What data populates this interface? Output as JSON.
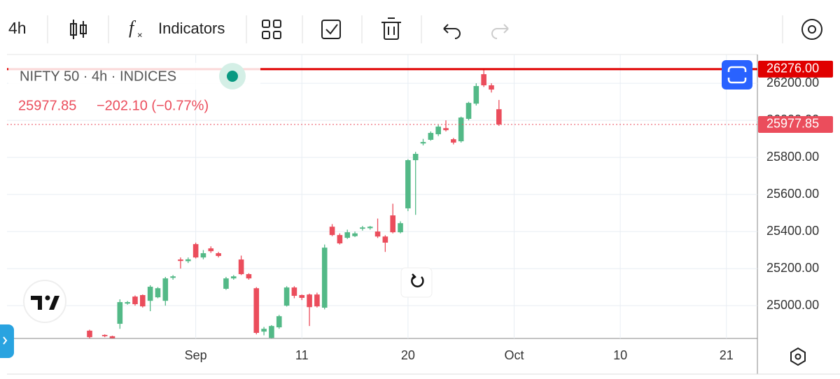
{
  "toolbar": {
    "interval": "4h",
    "indicators": "Indicators"
  },
  "chart_data": {
    "type": "candlestick",
    "legend": {
      "symbol": "NIFTY 50 · 4h · INDICES",
      "price": "25977.85",
      "change": "−202.10 (−0.77%)"
    },
    "categories": [
      null,
      null,
      null,
      null,
      null,
      null,
      null,
      null,
      null,
      null,
      null,
      null,
      null,
      null,
      "Sep",
      null,
      null,
      null,
      null,
      null,
      null,
      null,
      null,
      null,
      null,
      null,
      null,
      null,
      "11",
      null,
      null,
      null,
      null,
      null,
      null,
      null,
      null,
      null,
      null,
      null,
      null,
      null,
      "20",
      null,
      null,
      null,
      null,
      null,
      null,
      null,
      null,
      null,
      null,
      null,
      null,
      null,
      "Oct",
      null,
      null,
      null,
      null,
      null,
      null,
      null,
      null,
      null,
      null,
      null,
      null,
      null,
      "10",
      null,
      null,
      null,
      null,
      null,
      null,
      null,
      null,
      null,
      null,
      null,
      null,
      null,
      "21"
    ],
    "open": [
      24865,
      24800,
      24842,
      24835,
      24902,
      25011,
      25049,
      25057,
      25026,
      25045,
      25026,
      25150,
      25249,
      25240,
      25332,
      25260,
      25309,
      25283,
      25091,
      25147,
      25249,
      25170,
      25094,
      24860,
      24826,
      24883,
      25000,
      25098,
      25057,
      25060,
      25060,
      24989,
      25426,
      25381,
      25366,
      25375,
      25415,
      25418,
      25400,
      25373,
      25487,
      25396,
      25525,
      25785,
      25875,
      25895,
      25925,
      25958,
      25898,
      25887,
      26008,
      26090,
      26249,
      26189,
      26060,
      null,
      null,
      null,
      null,
      null,
      null,
      null,
      null,
      null,
      null,
      null,
      null,
      null,
      null,
      null,
      null,
      null,
      null,
      null,
      null,
      null,
      null,
      null,
      null,
      null,
      null,
      null,
      null,
      null,
      null
    ],
    "high": [
      24870,
      24810,
      24845,
      24838,
      25034,
      25025,
      25055,
      25060,
      25110,
      25100,
      25155,
      25165,
      25260,
      25260,
      25340,
      25300,
      25320,
      25290,
      25155,
      25165,
      25270,
      25175,
      25100,
      24885,
      24895,
      24950,
      25105,
      25105,
      25060,
      25065,
      25070,
      25330,
      25440,
      25390,
      25410,
      25400,
      25430,
      25430,
      25470,
      25380,
      25550,
      25455,
      25790,
      25830,
      25900,
      25940,
      25975,
      26000,
      25905,
      26020,
      26100,
      26200,
      26276,
      26200,
      26110,
      null,
      null,
      null,
      null,
      null,
      null,
      null,
      null,
      null,
      null,
      null,
      null,
      null,
      null,
      null,
      null,
      null,
      null,
      null,
      null,
      null,
      null,
      null,
      null,
      null,
      null,
      null,
      null,
      null,
      null
    ],
    "low": [
      24820,
      24760,
      24830,
      24815,
      24875,
      25005,
      25000,
      24990,
      24970,
      25040,
      25000,
      25140,
      25200,
      25230,
      25255,
      25250,
      25285,
      25260,
      25085,
      25140,
      25165,
      25140,
      24845,
      24840,
      24820,
      24875,
      24995,
      25040,
      25030,
      24890,
      24990,
      24980,
      25375,
      25330,
      25360,
      25370,
      25405,
      25410,
      25365,
      25290,
      25390,
      25390,
      25510,
      25490,
      25865,
      25890,
      25915,
      25940,
      25870,
      25880,
      26000,
      26080,
      26180,
      26150,
      25970,
      null,
      null,
      null,
      null,
      null,
      null,
      null,
      null,
      null,
      null,
      null,
      null,
      null,
      null,
      null,
      null,
      null,
      null,
      null,
      null,
      null,
      null,
      null,
      null,
      null,
      null,
      null,
      null,
      null,
      null
    ],
    "close": [
      24830,
      24780,
      24835,
      24825,
      25019,
      25019,
      25008,
      24996,
      25102,
      25094,
      25147,
      25158,
      25241,
      25250,
      25260,
      25283,
      25294,
      25268,
      25147,
      25158,
      25170,
      25147,
      24853,
      24875,
      24890,
      24943,
      25098,
      25053,
      25042,
      24992,
      24996,
      25313,
      25381,
      25336,
      25396,
      25390,
      25422,
      25426,
      25373,
      25340,
      25396,
      25445,
      25785,
      25819,
      25883,
      25932,
      25966,
      25947,
      25880,
      26015,
      26094,
      26185,
      26189,
      26166,
      25977.85,
      null,
      null,
      null,
      null,
      null,
      null,
      null,
      null,
      null,
      null,
      null,
      null,
      null,
      null,
      null,
      null,
      null,
      null,
      null,
      null,
      null,
      null,
      null,
      null,
      null,
      null,
      null,
      null,
      null,
      null
    ],
    "up_color": "#53b987",
    "down_color": "#eb4d5c",
    "ylim": [
      24823,
      26355
    ],
    "yticks": [
      {
        "value": 25000,
        "label": "25000.00"
      },
      {
        "value": 25200,
        "label": "25200.00"
      },
      {
        "value": 25400,
        "label": "25400.00"
      },
      {
        "value": 25600,
        "label": "25600.00"
      },
      {
        "value": 25800,
        "label": "25800.00"
      },
      {
        "value": 26000,
        "label": "26000.00"
      },
      {
        "value": 26200,
        "label": "26200.00"
      }
    ],
    "alert_line": {
      "value": 26276,
      "label": "26276.00",
      "color": "#e00000"
    },
    "last_price": {
      "value": 25977.85,
      "label": "25977.85",
      "color": "#eb4d5c"
    },
    "grid": true
  }
}
